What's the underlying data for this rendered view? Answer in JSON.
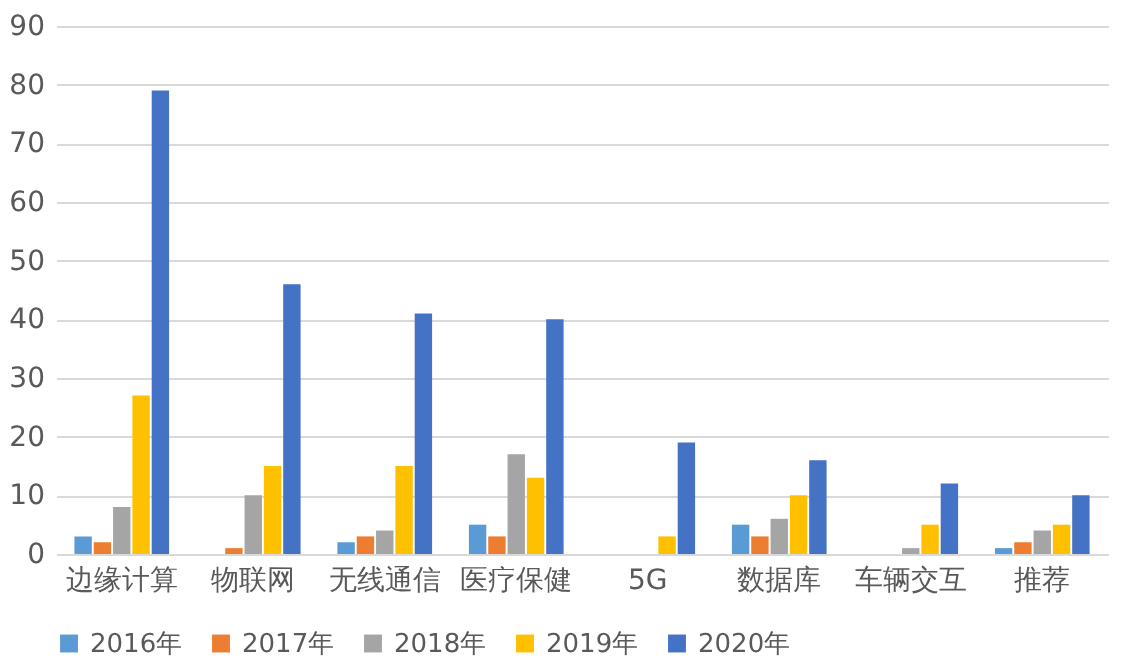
{
  "chart_data": {
    "type": "bar",
    "categories": [
      "边缘计算",
      "物联网",
      "无线通信",
      "医疗保健",
      "5G",
      "数据库",
      "车辆交互",
      "推荐"
    ],
    "series": [
      {
        "name": "2016年",
        "color": "#5b9bd5",
        "values": [
          3,
          null,
          2,
          5,
          null,
          5,
          null,
          1
        ]
      },
      {
        "name": "2017年",
        "color": "#ed7d31",
        "values": [
          2,
          1,
          3,
          3,
          null,
          3,
          null,
          2
        ]
      },
      {
        "name": "2018年",
        "color": "#a5a5a5",
        "values": [
          8,
          10,
          4,
          17,
          null,
          6,
          1,
          4
        ]
      },
      {
        "name": "2019年",
        "color": "#ffc000",
        "values": [
          27,
          15,
          15,
          13,
          3,
          10,
          5,
          5
        ]
      },
      {
        "name": "2020年",
        "color": "#4472c4",
        "values": [
          79,
          46,
          41,
          40,
          19,
          16,
          12,
          10
        ]
      }
    ],
    "ylim": [
      0,
      90
    ],
    "yticks": [
      0,
      10,
      20,
      30,
      40,
      50,
      60,
      70,
      80,
      90
    ],
    "grid": "y",
    "legend": "bottom"
  }
}
